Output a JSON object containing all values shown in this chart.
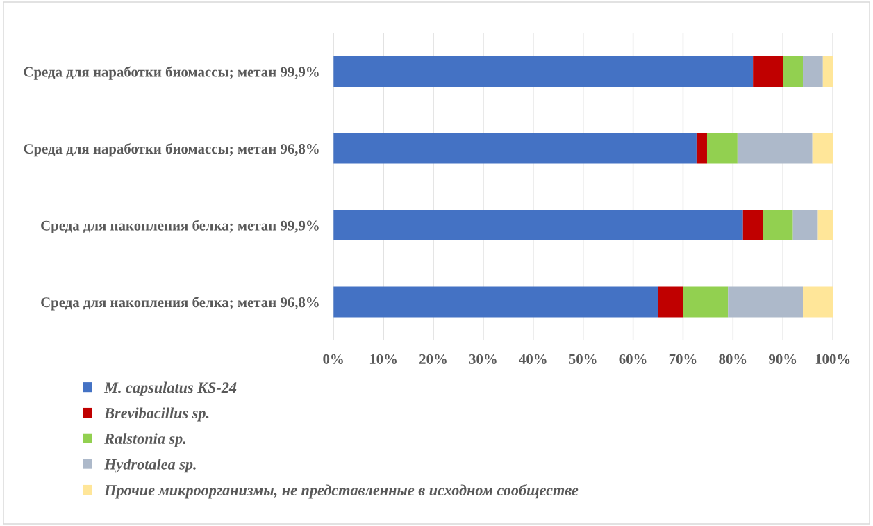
{
  "chart_data": {
    "type": "bar",
    "orientation": "horizontal",
    "stacked": true,
    "categories": [
      "Среда для наработки биомассы; метан 99,9%",
      "Среда для наработки биомассы; метан 96,8%",
      "Среда для накопления белка; метан 99,9%",
      "Среда для накопления белка; метан 96,8%"
    ],
    "series": [
      {
        "name": "M. capsulatus KS-24",
        "color": "#4472c4",
        "values": [
          84,
          72.7,
          82,
          65
        ]
      },
      {
        "name": "Brevibacillus sp.",
        "color": "#c00000",
        "values": [
          6,
          2.1,
          4,
          5
        ]
      },
      {
        "name": "Ralstonia sp.",
        "color": "#92d050",
        "values": [
          4,
          6.1,
          6,
          9
        ]
      },
      {
        "name": "Hydrotalea sp.",
        "color": "#adb9ca",
        "values": [
          4,
          15,
          5,
          15
        ]
      },
      {
        "name": "Прочие микроорганизмы, не представленные в исходном сообществе",
        "color": "#ffe699",
        "values": [
          2,
          4.1,
          3,
          6
        ]
      }
    ],
    "xlim": [
      0,
      100
    ],
    "xticks": [
      {
        "value": 0,
        "label": "0%"
      },
      {
        "value": 10,
        "label": "10%"
      },
      {
        "value": 20,
        "label": "20%"
      },
      {
        "value": 30,
        "label": "30%"
      },
      {
        "value": 40,
        "label": "40%"
      },
      {
        "value": 50,
        "label": "50%"
      },
      {
        "value": 60,
        "label": "60%"
      },
      {
        "value": 70,
        "label": "70%"
      },
      {
        "value": 80,
        "label": "80%"
      },
      {
        "value": 90,
        "label": "90%"
      },
      {
        "value": 100,
        "label": "100%"
      }
    ],
    "grid": "x",
    "legend": "bottom"
  }
}
